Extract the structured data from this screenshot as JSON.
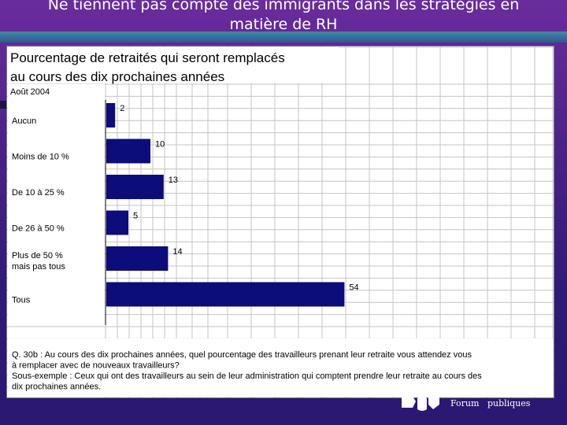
{
  "slide": {
    "title_line1": "Ne tiennent pas compte des immigrants dans les stratégies en",
    "title_line2": "matière de RH"
  },
  "chart_data": {
    "type": "bar",
    "orientation": "horizontal",
    "title_line1": "Pourcentage de retraités qui seront remplacés",
    "title_line2": "au cours des dix prochaines années",
    "subtitle": "Août 2004",
    "categories": [
      [
        "Aucun"
      ],
      [
        "Moins de 10 %"
      ],
      [
        "De 10 à 25 %"
      ],
      [
        "De 26 à 50 %"
      ],
      [
        "Plus de 50 %",
        "mais pas tous"
      ],
      [
        "Tous"
      ]
    ],
    "values": [
      2,
      10,
      13,
      5,
      14,
      54
    ],
    "xlim": [
      0,
      100
    ],
    "grid": true,
    "bar_color": "#0c0c7a",
    "footnote": [
      "Q. 30b : Au cours des dix prochaines années, quel pourcentage des travailleurs prenant leur retraite vous attendez vous",
      "à remplacer avec de nouveaux travailleurs?",
      "Sous-exemple : Ceux qui ont des travailleurs au sein de leur administration qui comptent prendre leur retraite au cours des",
      "dix prochaines années."
    ]
  },
  "branding": {
    "word1": "Forum",
    "word2": "publiques"
  }
}
